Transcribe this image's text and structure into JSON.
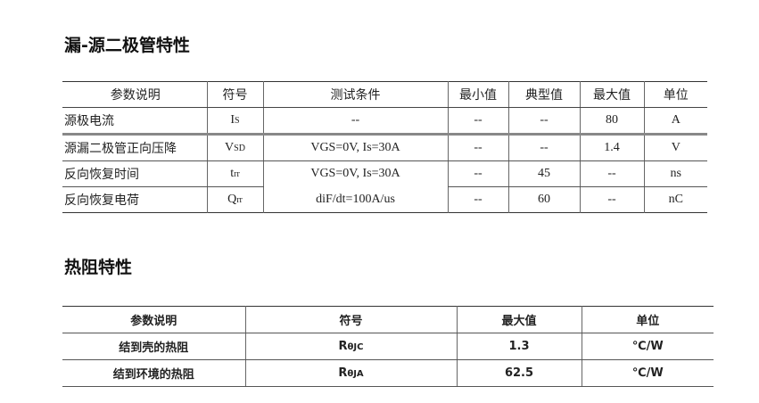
{
  "section1": {
    "title": "漏-源二极管特性",
    "headers": [
      "参数说明",
      "符号",
      "测试条件",
      "最小值",
      "典型值",
      "最大值",
      "单位"
    ],
    "rows": [
      {
        "param": "源极电流",
        "sym": "I",
        "sym_sub": "S",
        "cond": "--",
        "min": "--",
        "typ": "--",
        "max": "80",
        "unit": "A"
      },
      {
        "param": "源漏二极管正向压降",
        "sym": "V",
        "sym_sub": "SD",
        "cond": "VGS=0V, Is=30A",
        "min": "--",
        "typ": "--",
        "max": "1.4",
        "unit": "V"
      },
      {
        "param": "反向恢复时间",
        "sym": "t",
        "sym_sub": "rr",
        "cond": "VGS=0V, Is=30A",
        "min": "--",
        "typ": "45",
        "max": "--",
        "unit": "ns"
      },
      {
        "param": "反向恢复电荷",
        "sym": "Q",
        "sym_sub": "rr",
        "cond": "diF/dt=100A/us",
        "min": "--",
        "typ": "60",
        "max": "--",
        "unit": "nC"
      }
    ]
  },
  "section2": {
    "title": "热阻特性",
    "headers": [
      "参数说明",
      "符号",
      "最大值",
      "单位"
    ],
    "rows": [
      {
        "param": "结到壳的热阻",
        "sym": "R",
        "sym_sub": "θJC",
        "max": "1.3",
        "unit": "℃/W"
      },
      {
        "param": "结到环境的热阻",
        "sym": "R",
        "sym_sub": "θJA",
        "max": "62.5",
        "unit": "℃/W"
      }
    ]
  }
}
